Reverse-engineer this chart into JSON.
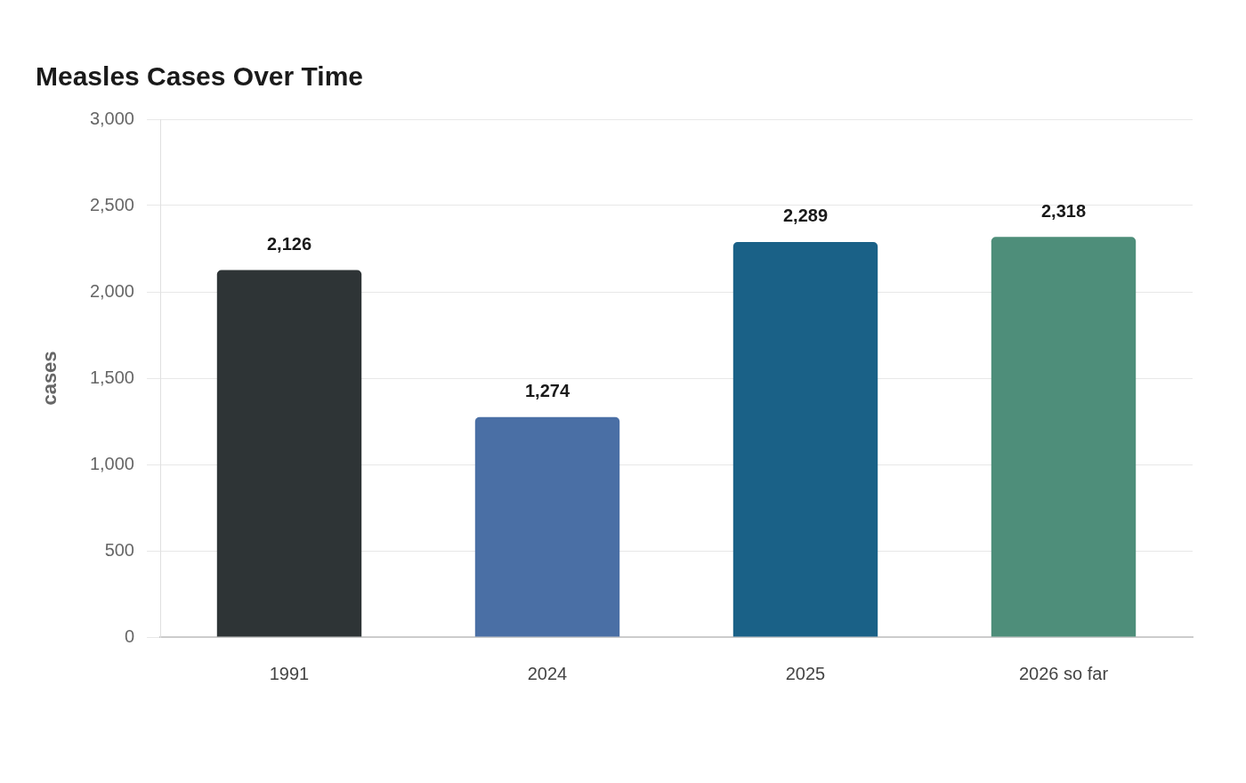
{
  "chart_data": {
    "type": "bar",
    "title": "Measles Cases Over Time",
    "ylabel": "cases",
    "categories": [
      "1991",
      "2024",
      "2025",
      "2026 so far"
    ],
    "values": [
      2126,
      1274,
      2289,
      2318
    ],
    "colors": [
      "#2e3436",
      "#4a6fa5",
      "#1a6187",
      "#4e8e7a"
    ],
    "value_labels": [
      "2,126",
      "1,274",
      "2,289",
      "2,318"
    ],
    "ylim": [
      0,
      3000
    ],
    "yticks": [
      {
        "value": 0,
        "label": "0"
      },
      {
        "value": 500,
        "label": "500"
      },
      {
        "value": 1000,
        "label": "1,000"
      },
      {
        "value": 1500,
        "label": "1,500"
      },
      {
        "value": 2000,
        "label": "2,000"
      },
      {
        "value": 2500,
        "label": "2,500"
      },
      {
        "value": 3000,
        "label": "3,000"
      }
    ],
    "grid": "y",
    "legend": false
  }
}
